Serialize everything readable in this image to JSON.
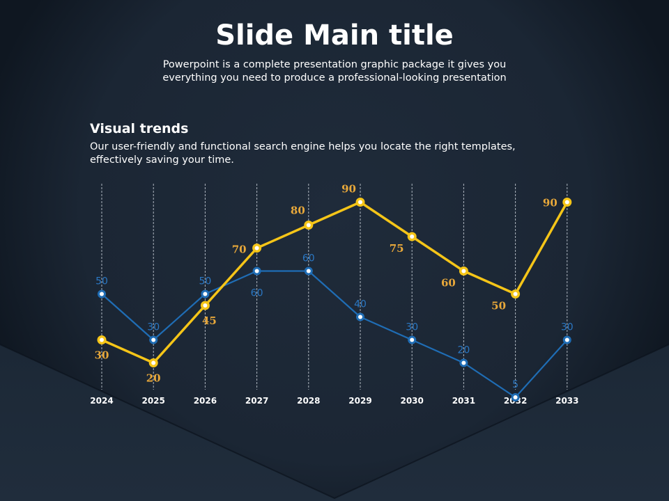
{
  "slide": {
    "title": "Slide Main title",
    "subtitle": "Powerpoint is a complete presentation graphic package it gives you everything you need to produce a professional-looking presentation"
  },
  "section": {
    "heading": "Visual trends",
    "text": "Our user-friendly and functional search engine helps you locate the right templates, effectively saving your time."
  },
  "colors": {
    "background": "#1e2a38",
    "series_yellow": "#f5c518",
    "series_blue": "#1f6db5",
    "label_yellow": "#e8a83a",
    "label_blue": "#2b78c4"
  },
  "chart_data": {
    "type": "line",
    "categories": [
      "2024",
      "2025",
      "2026",
      "2027",
      "2028",
      "2029",
      "2030",
      "2031",
      "2032",
      "2033"
    ],
    "series": [
      {
        "values": [
          30,
          20,
          45,
          70,
          80,
          90,
          75,
          60,
          50,
          90
        ],
        "color": "#f5c518",
        "label_color": "#e8a83a"
      },
      {
        "values": [
          50,
          30,
          50,
          60,
          60,
          40,
          30,
          20,
          5,
          30
        ],
        "color": "#1f6db5",
        "label_color": "#2b78c4"
      }
    ],
    "ylim": [
      0,
      100
    ],
    "grid": "vertical dashed",
    "legend": "none",
    "data_labels": true
  }
}
